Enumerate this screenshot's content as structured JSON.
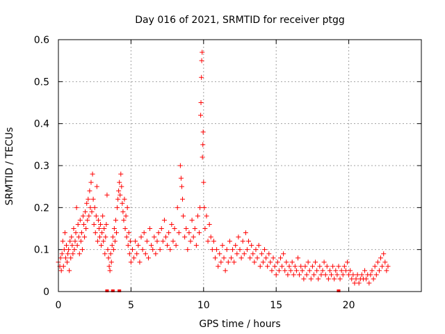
{
  "chart_data": {
    "type": "scatter",
    "title": "Day 016 of 2021, SRMTID for receiver ptgg",
    "xlabel": "GPS time / hours",
    "ylabel": "SRMTID / TECUs",
    "xlim": [
      0,
      25
    ],
    "ylim": [
      0,
      0.6
    ],
    "xticks": [
      0,
      5,
      10,
      15,
      20
    ],
    "yticks": [
      0,
      0.1,
      0.2,
      0.3,
      0.4,
      0.5,
      0.6
    ],
    "xtick_labels": [
      "0",
      "5",
      "10",
      "15",
      "20"
    ],
    "ytick_labels": [
      "0",
      "0.1",
      "0.2",
      "0.3",
      "0.4",
      "0.5",
      "0.6"
    ],
    "grid": true,
    "marker": "plus",
    "color": "#ff0000",
    "series": [
      {
        "name": "SRMTID",
        "points": [
          [
            0.0,
            0.07
          ],
          [
            0.1,
            0.06
          ],
          [
            0.15,
            0.08
          ],
          [
            0.2,
            0.05
          ],
          [
            0.25,
            0.09
          ],
          [
            0.3,
            0.12
          ],
          [
            0.35,
            0.06
          ],
          [
            0.4,
            0.1
          ],
          [
            0.45,
            0.14
          ],
          [
            0.5,
            0.08
          ],
          [
            0.55,
            0.11
          ],
          [
            0.6,
            0.07
          ],
          [
            0.65,
            0.09
          ],
          [
            0.7,
            0.1
          ],
          [
            0.75,
            0.05
          ],
          [
            0.8,
            0.12
          ],
          [
            0.85,
            0.08
          ],
          [
            0.9,
            0.13
          ],
          [
            0.95,
            0.11
          ],
          [
            1.0,
            0.09
          ],
          [
            1.05,
            0.15
          ],
          [
            1.1,
            0.1
          ],
          [
            1.15,
            0.12
          ],
          [
            1.2,
            0.14
          ],
          [
            1.25,
            0.2
          ],
          [
            1.3,
            0.11
          ],
          [
            1.35,
            0.16
          ],
          [
            1.4,
            0.13
          ],
          [
            1.45,
            0.09
          ],
          [
            1.5,
            0.17
          ],
          [
            1.55,
            0.12
          ],
          [
            1.6,
            0.14
          ],
          [
            1.65,
            0.1
          ],
          [
            1.7,
            0.18
          ],
          [
            1.75,
            0.16
          ],
          [
            1.8,
            0.13
          ],
          [
            1.85,
            0.19
          ],
          [
            1.9,
            0.15
          ],
          [
            1.95,
            0.21
          ],
          [
            2.0,
            0.17
          ],
          [
            2.05,
            0.22
          ],
          [
            2.1,
            0.18
          ],
          [
            2.15,
            0.24
          ],
          [
            2.2,
            0.2
          ],
          [
            2.25,
            0.26
          ],
          [
            2.3,
            0.19
          ],
          [
            2.35,
            0.28
          ],
          [
            2.4,
            0.22
          ],
          [
            2.45,
            0.16
          ],
          [
            2.5,
            0.2
          ],
          [
            2.55,
            0.14
          ],
          [
            2.6,
            0.18
          ],
          [
            2.65,
            0.25
          ],
          [
            2.7,
            0.12
          ],
          [
            2.75,
            0.17
          ],
          [
            2.8,
            0.15
          ],
          [
            2.85,
            0.13
          ],
          [
            2.9,
            0.16
          ],
          [
            2.95,
            0.11
          ],
          [
            3.0,
            0.14
          ],
          [
            3.05,
            0.18
          ],
          [
            3.1,
            0.12
          ],
          [
            3.15,
            0.15
          ],
          [
            3.2,
            0.09
          ],
          [
            3.25,
            0.13
          ],
          [
            3.3,
            0.16
          ],
          [
            3.35,
            0.23
          ],
          [
            3.4,
            0.1
          ],
          [
            3.45,
            0.08
          ],
          [
            3.5,
            0.06
          ],
          [
            3.55,
            0.05
          ],
          [
            3.6,
            0.09
          ],
          [
            3.65,
            0.07
          ],
          [
            3.7,
            0.11
          ],
          [
            3.75,
            0.13
          ],
          [
            3.8,
            0.1
          ],
          [
            3.85,
            0.15
          ],
          [
            3.9,
            0.12
          ],
          [
            3.95,
            0.17
          ],
          [
            4.0,
            0.14
          ],
          [
            4.05,
            0.2
          ],
          [
            4.1,
            0.22
          ],
          [
            4.15,
            0.24
          ],
          [
            4.2,
            0.26
          ],
          [
            4.25,
            0.23
          ],
          [
            4.3,
            0.28
          ],
          [
            4.35,
            0.25
          ],
          [
            4.4,
            0.21
          ],
          [
            4.45,
            0.19
          ],
          [
            4.5,
            0.17
          ],
          [
            4.55,
            0.22
          ],
          [
            4.6,
            0.15
          ],
          [
            4.65,
            0.18
          ],
          [
            4.7,
            0.13
          ],
          [
            4.75,
            0.2
          ],
          [
            4.8,
            0.11
          ],
          [
            4.85,
            0.14
          ],
          [
            4.9,
            0.09
          ],
          [
            4.95,
            0.12
          ],
          [
            5.0,
            0.07
          ],
          [
            5.1,
            0.1
          ],
          [
            5.2,
            0.08
          ],
          [
            5.3,
            0.12
          ],
          [
            5.4,
            0.09
          ],
          [
            5.5,
            0.11
          ],
          [
            5.6,
            0.07
          ],
          [
            5.7,
            0.13
          ],
          [
            5.8,
            0.1
          ],
          [
            5.9,
            0.14
          ],
          [
            6.0,
            0.09
          ],
          [
            6.1,
            0.12
          ],
          [
            6.2,
            0.08
          ],
          [
            6.3,
            0.15
          ],
          [
            6.4,
            0.11
          ],
          [
            6.5,
            0.1
          ],
          [
            6.6,
            0.13
          ],
          [
            6.7,
            0.09
          ],
          [
            6.8,
            0.12
          ],
          [
            6.9,
            0.14
          ],
          [
            7.0,
            0.1
          ],
          [
            7.1,
            0.15
          ],
          [
            7.2,
            0.12
          ],
          [
            7.3,
            0.17
          ],
          [
            7.4,
            0.13
          ],
          [
            7.5,
            0.11
          ],
          [
            7.6,
            0.14
          ],
          [
            7.7,
            0.1
          ],
          [
            7.8,
            0.16
          ],
          [
            7.9,
            0.12
          ],
          [
            8.0,
            0.15
          ],
          [
            8.1,
            0.11
          ],
          [
            8.2,
            0.2
          ],
          [
            8.3,
            0.14
          ],
          [
            8.4,
            0.3
          ],
          [
            8.45,
            0.27
          ],
          [
            8.5,
            0.25
          ],
          [
            8.55,
            0.22
          ],
          [
            8.6,
            0.18
          ],
          [
            8.7,
            0.13
          ],
          [
            8.8,
            0.15
          ],
          [
            8.9,
            0.1
          ],
          [
            9.0,
            0.14
          ],
          [
            9.1,
            0.12
          ],
          [
            9.2,
            0.17
          ],
          [
            9.3,
            0.13
          ],
          [
            9.4,
            0.15
          ],
          [
            9.5,
            0.11
          ],
          [
            9.6,
            0.18
          ],
          [
            9.7,
            0.14
          ],
          [
            9.75,
            0.2
          ],
          [
            9.8,
            0.42
          ],
          [
            9.82,
            0.45
          ],
          [
            9.85,
            0.51
          ],
          [
            9.87,
            0.55
          ],
          [
            9.9,
            0.57
          ],
          [
            9.92,
            0.32
          ],
          [
            9.95,
            0.35
          ],
          [
            9.97,
            0.38
          ],
          [
            10.0,
            0.26
          ],
          [
            10.05,
            0.2
          ],
          [
            10.1,
            0.15
          ],
          [
            10.2,
            0.18
          ],
          [
            10.3,
            0.12
          ],
          [
            10.4,
            0.16
          ],
          [
            10.5,
            0.13
          ],
          [
            10.6,
            0.1
          ],
          [
            10.7,
            0.12
          ],
          [
            10.8,
            0.08
          ],
          [
            10.9,
            0.1
          ],
          [
            11.0,
            0.06
          ],
          [
            11.1,
            0.09
          ],
          [
            11.2,
            0.07
          ],
          [
            11.3,
            0.11
          ],
          [
            11.4,
            0.08
          ],
          [
            11.5,
            0.05
          ],
          [
            11.6,
            0.1
          ],
          [
            11.7,
            0.07
          ],
          [
            11.8,
            0.12
          ],
          [
            11.9,
            0.08
          ],
          [
            12.0,
            0.1
          ],
          [
            12.1,
            0.07
          ],
          [
            12.2,
            0.11
          ],
          [
            12.3,
            0.09
          ],
          [
            12.4,
            0.13
          ],
          [
            12.5,
            0.1
          ],
          [
            12.6,
            0.08
          ],
          [
            12.7,
            0.12
          ],
          [
            12.8,
            0.09
          ],
          [
            12.9,
            0.14
          ],
          [
            13.0,
            0.1
          ],
          [
            13.1,
            0.12
          ],
          [
            13.2,
            0.08
          ],
          [
            13.3,
            0.11
          ],
          [
            13.4,
            0.09
          ],
          [
            13.5,
            0.07
          ],
          [
            13.6,
            0.1
          ],
          [
            13.7,
            0.08
          ],
          [
            13.8,
            0.11
          ],
          [
            13.9,
            0.06
          ],
          [
            14.0,
            0.09
          ],
          [
            14.1,
            0.07
          ],
          [
            14.2,
            0.1
          ],
          [
            14.3,
            0.08
          ],
          [
            14.4,
            0.06
          ],
          [
            14.5,
            0.09
          ],
          [
            14.6,
            0.07
          ],
          [
            14.7,
            0.05
          ],
          [
            14.8,
            0.08
          ],
          [
            14.9,
            0.06
          ],
          [
            15.0,
            0.04
          ],
          [
            15.1,
            0.07
          ],
          [
            15.2,
            0.05
          ],
          [
            15.3,
            0.08
          ],
          [
            15.4,
            0.06
          ],
          [
            15.5,
            0.09
          ],
          [
            15.6,
            0.05
          ],
          [
            15.7,
            0.07
          ],
          [
            15.8,
            0.04
          ],
          [
            15.9,
            0.06
          ],
          [
            16.0,
            0.05
          ],
          [
            16.1,
            0.07
          ],
          [
            16.2,
            0.04
          ],
          [
            16.3,
            0.06
          ],
          [
            16.4,
            0.05
          ],
          [
            16.5,
            0.08
          ],
          [
            16.6,
            0.04
          ],
          [
            16.7,
            0.06
          ],
          [
            16.8,
            0.05
          ],
          [
            16.9,
            0.03
          ],
          [
            17.0,
            0.06
          ],
          [
            17.1,
            0.04
          ],
          [
            17.2,
            0.07
          ],
          [
            17.3,
            0.05
          ],
          [
            17.4,
            0.03
          ],
          [
            17.5,
            0.06
          ],
          [
            17.6,
            0.04
          ],
          [
            17.7,
            0.07
          ],
          [
            17.8,
            0.05
          ],
          [
            17.9,
            0.03
          ],
          [
            18.0,
            0.06
          ],
          [
            18.1,
            0.04
          ],
          [
            18.2,
            0.05
          ],
          [
            18.3,
            0.07
          ],
          [
            18.4,
            0.04
          ],
          [
            18.5,
            0.06
          ],
          [
            18.6,
            0.03
          ],
          [
            18.7,
            0.05
          ],
          [
            18.8,
            0.04
          ],
          [
            18.9,
            0.06
          ],
          [
            19.0,
            0.03
          ],
          [
            19.1,
            0.05
          ],
          [
            19.2,
            0.04
          ],
          [
            19.3,
            0.06
          ],
          [
            19.4,
            0.03
          ],
          [
            19.5,
            0.05
          ],
          [
            19.6,
            0.04
          ],
          [
            19.7,
            0.06
          ],
          [
            19.8,
            0.05
          ],
          [
            19.9,
            0.07
          ],
          [
            20.0,
            0.04
          ],
          [
            20.1,
            0.05
          ],
          [
            20.2,
            0.03
          ],
          [
            20.3,
            0.04
          ],
          [
            20.4,
            0.02
          ],
          [
            20.5,
            0.03
          ],
          [
            20.6,
            0.04
          ],
          [
            20.7,
            0.02
          ],
          [
            20.8,
            0.03
          ],
          [
            20.9,
            0.04
          ],
          [
            21.0,
            0.03
          ],
          [
            21.1,
            0.05
          ],
          [
            21.2,
            0.03
          ],
          [
            21.3,
            0.04
          ],
          [
            21.4,
            0.02
          ],
          [
            21.5,
            0.04
          ],
          [
            21.6,
            0.05
          ],
          [
            21.7,
            0.03
          ],
          [
            21.8,
            0.06
          ],
          [
            21.9,
            0.04
          ],
          [
            22.0,
            0.07
          ],
          [
            22.1,
            0.05
          ],
          [
            22.2,
            0.08
          ],
          [
            22.3,
            0.06
          ],
          [
            22.4,
            0.09
          ],
          [
            22.5,
            0.07
          ],
          [
            22.6,
            0.05
          ],
          [
            22.7,
            0.06
          ]
        ]
      }
    ],
    "zero_markers": [
      3.35,
      3.75,
      4.2,
      19.3
    ]
  }
}
